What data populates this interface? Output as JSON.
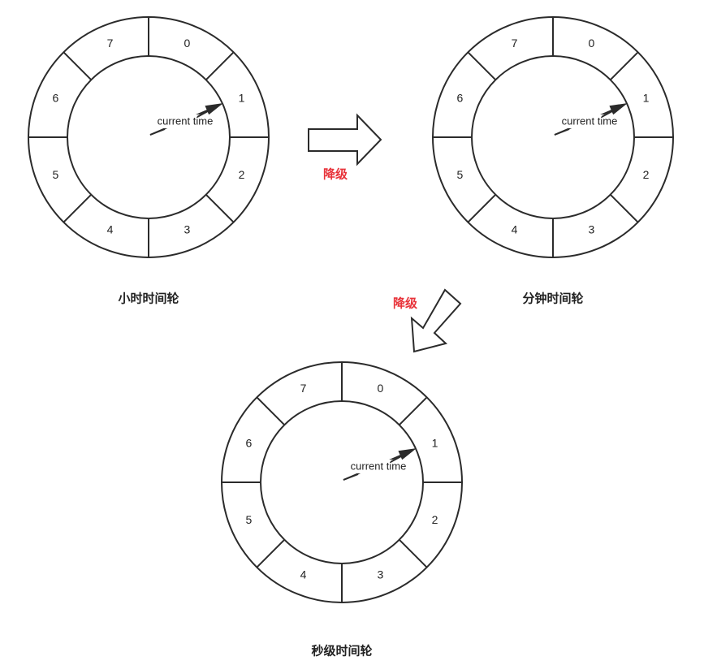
{
  "wheels": [
    {
      "id": "hour",
      "caption": "小时时间轮",
      "slots": [
        "0",
        "1",
        "2",
        "3",
        "4",
        "5",
        "6",
        "7"
      ],
      "pointer_label": "current time"
    },
    {
      "id": "minute",
      "caption": "分钟时间轮",
      "slots": [
        "0",
        "1",
        "2",
        "3",
        "4",
        "5",
        "6",
        "7"
      ],
      "pointer_label": "current time"
    },
    {
      "id": "second",
      "caption": "秒级时间轮",
      "slots": [
        "0",
        "1",
        "2",
        "3",
        "4",
        "5",
        "6",
        "7"
      ],
      "pointer_label": "current time"
    }
  ],
  "transitions": [
    {
      "from": "hour",
      "to": "minute",
      "label": "降级"
    },
    {
      "from": "minute",
      "to": "second",
      "label": "降级"
    }
  ],
  "colors": {
    "stroke": "#2b2b2b",
    "transition_label": "#e8333a"
  }
}
